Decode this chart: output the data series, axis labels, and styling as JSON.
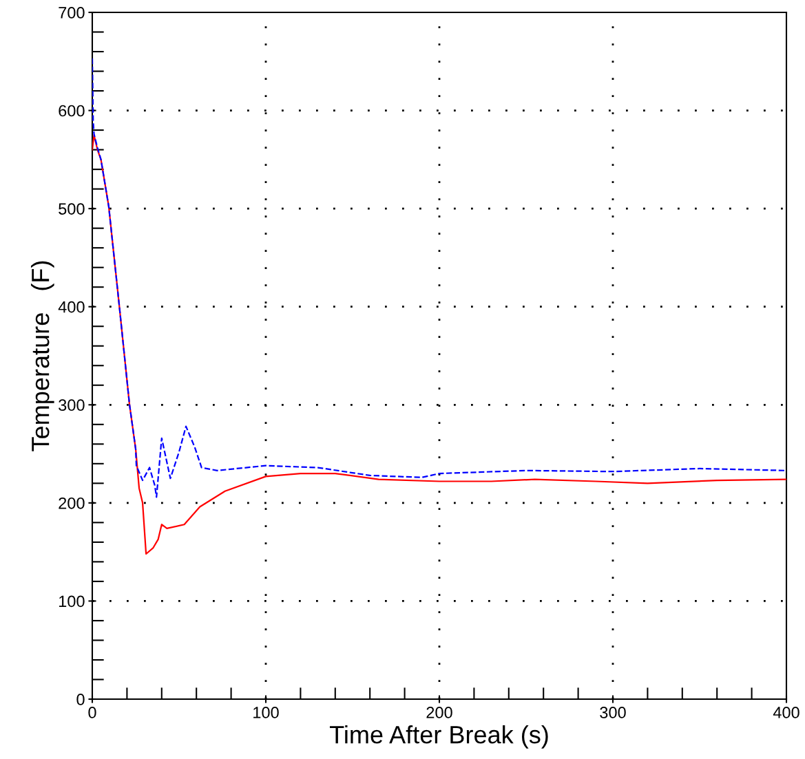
{
  "chart_data": {
    "type": "line",
    "xlabel": "Time After Break (s)",
    "ylabel": "Temperature   (F)",
    "xlim": [
      0,
      400
    ],
    "ylim": [
      0,
      700
    ],
    "xticks": [
      0,
      100,
      200,
      300,
      400
    ],
    "yticks": [
      0,
      100,
      200,
      300,
      400,
      500,
      600,
      700
    ],
    "grid": true,
    "legend": false,
    "marker": "none",
    "series": [
      {
        "color": "#ff0000",
        "line_style": "solid",
        "x": [
          0,
          1,
          3,
          5,
          9.5,
          15.5,
          21.4,
          25,
          27,
          29,
          31,
          35,
          38,
          40,
          43,
          53,
          62,
          76.5,
          100,
          120,
          140,
          165,
          200,
          230,
          255,
          290,
          320,
          360,
          400
        ],
        "values": [
          560,
          575,
          560,
          550,
          502,
          402,
          301,
          255,
          215,
          200,
          148,
          154,
          163,
          178,
          174,
          178,
          196,
          212,
          227,
          230,
          230,
          224,
          222,
          222,
          224,
          222,
          220,
          223,
          224
        ]
      },
      {
        "color": "#0000ff",
        "line_style": "dashed",
        "x": [
          0,
          0.5,
          1,
          3,
          5,
          9.5,
          15.5,
          21.4,
          25,
          25.4,
          29,
          33,
          36,
          37,
          40,
          45,
          50,
          54,
          59,
          63,
          72,
          100,
          130,
          160,
          190,
          200,
          250,
          300,
          350,
          400
        ],
        "values": [
          653,
          590,
          576,
          562,
          550,
          502,
          402,
          301,
          255,
          238,
          223,
          236,
          218,
          206,
          266,
          225,
          252,
          278,
          257,
          236,
          233,
          238,
          236,
          228,
          226,
          230,
          233,
          232,
          235,
          233
        ]
      }
    ]
  }
}
